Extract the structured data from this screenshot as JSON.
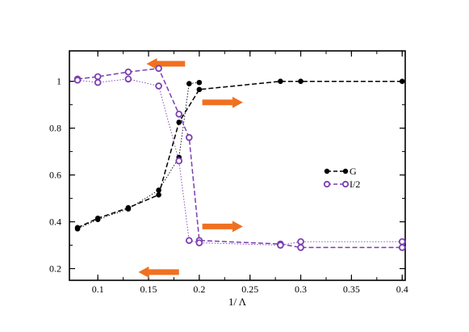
{
  "chart_data": {
    "type": "line",
    "xlabel": "1/ Λ",
    "ylabel": "",
    "xlim": [
      0.072,
      0.403
    ],
    "ylim": [
      0.15,
      1.13
    ],
    "xticks": [
      0.1,
      0.15,
      0.2,
      0.25,
      0.3,
      0.35,
      0.4
    ],
    "xtick_labels": [
      "0.1",
      "0.15",
      "0.2",
      "0.25",
      "0.3",
      "0.35",
      "0.4"
    ],
    "yticks": [
      0.2,
      0.4,
      0.6,
      0.8,
      1.0
    ],
    "ytick_labels": [
      "0.2",
      "0.4",
      "0.6",
      "0.8",
      "1"
    ],
    "grid": false,
    "legend_position": "right-middle",
    "series": [
      {
        "name": "G",
        "color": "#000000",
        "marker": "filled-circle",
        "curves": [
          {
            "style": "dashed",
            "x": [
              0.08,
              0.1,
              0.13,
              0.16,
              0.18,
              0.2,
              0.28,
              0.3,
              0.4
            ],
            "y": [
              0.375,
              0.415,
              0.46,
              0.515,
              0.825,
              0.965,
              1.0,
              1.0,
              1.0
            ]
          },
          {
            "style": "dotted",
            "x": [
              0.08,
              0.1,
              0.13,
              0.16,
              0.18,
              0.19,
              0.2
            ],
            "y": [
              0.37,
              0.41,
              0.455,
              0.535,
              0.675,
              0.99,
              0.995
            ]
          }
        ]
      },
      {
        "name": "I/2",
        "color": "#7a3fb0",
        "marker": "open-circle",
        "curves": [
          {
            "style": "dashed",
            "x": [
              0.08,
              0.1,
              0.13,
              0.16,
              0.18,
              0.19,
              0.2,
              0.28,
              0.3,
              0.4
            ],
            "y": [
              1.01,
              1.02,
              1.04,
              1.055,
              0.86,
              0.76,
              0.32,
              0.305,
              0.29,
              0.29
            ]
          },
          {
            "style": "dotted",
            "x": [
              0.08,
              0.1,
              0.13,
              0.16,
              0.18,
              0.19,
              0.2,
              0.28,
              0.3,
              0.4
            ],
            "y": [
              1.005,
              0.995,
              1.01,
              0.98,
              0.66,
              0.32,
              0.31,
              0.3,
              0.315,
              0.315
            ]
          }
        ]
      }
    ],
    "annotations": [
      {
        "type": "arrow",
        "direction": "left",
        "color": "#f07020",
        "x": [
          0.186,
          0.148
        ],
        "y": 1.075
      },
      {
        "type": "arrow",
        "direction": "right",
        "color": "#f07020",
        "x": [
          0.203,
          0.243
        ],
        "y": 0.91
      },
      {
        "type": "arrow",
        "direction": "right",
        "color": "#f07020",
        "x": [
          0.203,
          0.243
        ],
        "y": 0.38
      },
      {
        "type": "arrow",
        "direction": "left",
        "color": "#f07020",
        "x": [
          0.18,
          0.14
        ],
        "y": 0.185
      }
    ]
  }
}
